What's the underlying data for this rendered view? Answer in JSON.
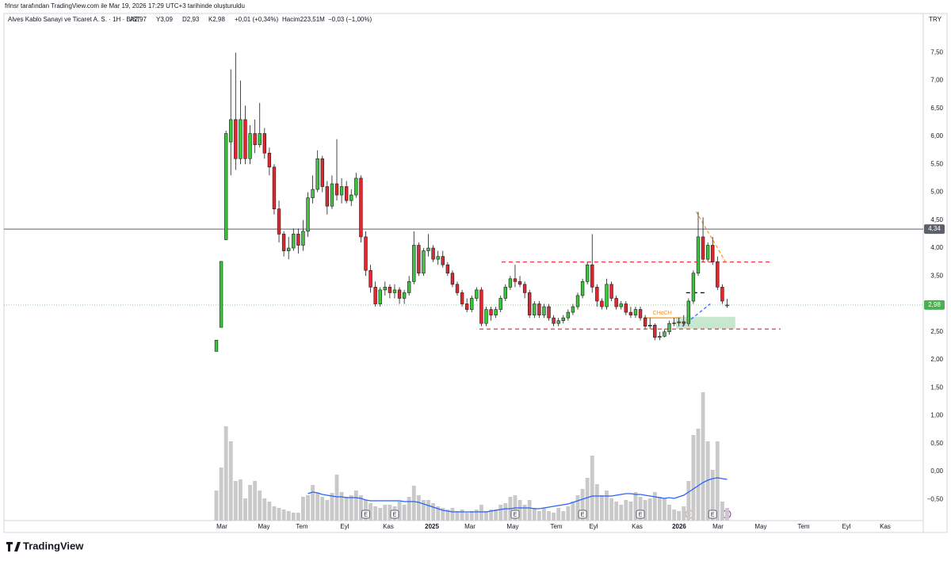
{
  "header": "frlnsr tarafından TradingView.com ile Mar 19, 2026 17:29 UTC+3 tarihinde oluşturuldu",
  "legend": {
    "symbol": "Alves Kablo Sanayi ve Ticaret A. S. · 1H · BIST",
    "open": "A2,97",
    "high": "Y3,09",
    "low": "D2,93",
    "close": "K2,98",
    "change": "+0,01 (+0,34%)",
    "volume": "Hacim223,51M",
    "volume_change": "−0,03 (−1,00%)"
  },
  "currency": "TRY",
  "brand": "TradingView",
  "chart_data": {
    "type": "candlestick",
    "xlim": [
      -44.08,
      146.71
    ],
    "xticks": [
      {
        "value": 1.15,
        "label": "Mar"
      },
      {
        "value": 9.87,
        "label": "May"
      },
      {
        "value": 17.76,
        "label": "Tem"
      },
      {
        "value": 26.64,
        "label": "Eyl"
      },
      {
        "value": 35.69,
        "label": "Kas"
      },
      {
        "value": 44.74,
        "label": "2025"
      },
      {
        "value": 52.63,
        "label": "Mar"
      },
      {
        "value": 61.51,
        "label": "May"
      },
      {
        "value": 70.56,
        "label": "Tem"
      },
      {
        "value": 78.29,
        "label": "Eyl"
      },
      {
        "value": 87.34,
        "label": "Kas"
      },
      {
        "value": 96.05,
        "label": "2026"
      },
      {
        "value": 104.11,
        "label": "Mar"
      },
      {
        "value": 112.99,
        "label": "May"
      },
      {
        "value": 121.88,
        "label": "Tem"
      },
      {
        "value": 130.76,
        "label": "Eyl"
      },
      {
        "value": 138.82,
        "label": "Kas"
      }
    ],
    "ylim": [
      -0.88,
      8.2
    ],
    "yticks": [
      {
        "value": -0.5,
        "label": "−0,50"
      },
      {
        "value": 0,
        "label": "0,00"
      },
      {
        "value": 0.5,
        "label": "0,50"
      },
      {
        "value": 1,
        "label": "1,00"
      },
      {
        "value": 1.5,
        "label": "1,50"
      },
      {
        "value": 2,
        "label": "2,00"
      },
      {
        "value": 2.5,
        "label": "2,50"
      },
      {
        "value": 3,
        "label": "3,00"
      },
      {
        "value": 3.5,
        "label": "3,50"
      },
      {
        "value": 4,
        "label": "4,00"
      },
      {
        "value": 4.5,
        "label": "4,50"
      },
      {
        "value": 5,
        "label": "5,00"
      },
      {
        "value": 5.5,
        "label": "5,50"
      },
      {
        "value": 6,
        "label": "6,00"
      },
      {
        "value": 6.5,
        "label": "6,50"
      },
      {
        "value": 7,
        "label": "7,00"
      },
      {
        "value": 7.5,
        "label": "7,50"
      }
    ],
    "up_color": "#3fc43f",
    "down_color": "#dc2a32",
    "volume_color": "#c9c9c9",
    "volume_ma_color": "#2962ff",
    "open": [
      2.15,
      2.58,
      4.15,
      5.9,
      6.3,
      5.6,
      6.3,
      5.6,
      6.05,
      5.85,
      6.05,
      5.7,
      5.45,
      4.7,
      4.25,
      3.95,
      4.0,
      4.25,
      4.05,
      4.3,
      4.9,
      5.05,
      5.6,
      5.1,
      4.75,
      5.15,
      4.95,
      5.1,
      4.85,
      4.95,
      5.25,
      4.2,
      3.6,
      3.3,
      3.0,
      3.25,
      3.3,
      3.2,
      3.25,
      3.1,
      3.2,
      3.4,
      4.05,
      3.55,
      3.95,
      4.0,
      3.8,
      3.85,
      3.7,
      3.55,
      3.35,
      3.2,
      3.0,
      2.9,
      3.1,
      3.25,
      2.65,
      2.9,
      2.8,
      2.9,
      3.1,
      3.3,
      3.45,
      3.4,
      3.35,
      3.2,
      2.8,
      3.0,
      2.8,
      2.95,
      2.75,
      2.65,
      2.7,
      2.75,
      2.85,
      2.95,
      3.15,
      3.4,
      3.7,
      3.3,
      3.05,
      2.95,
      3.35,
      3.1,
      2.95,
      3.0,
      2.85,
      2.8,
      2.9,
      2.75,
      2.6,
      2.62,
      2.4,
      2.42,
      2.5,
      2.65,
      2.66,
      2.68,
      2.65,
      3.05,
      3.55,
      4.2,
      3.8,
      4.05,
      3.75,
      3.3,
      2.97
    ],
    "high": [
      2.35,
      3.76,
      6.1,
      7.2,
      7.5,
      7.0,
      6.55,
      6.2,
      6.3,
      6.6,
      6.15,
      5.8,
      5.5,
      4.85,
      4.3,
      4.2,
      4.35,
      4.35,
      4.5,
      5.0,
      5.3,
      5.75,
      5.65,
      5.2,
      5.3,
      5.95,
      5.25,
      5.2,
      5.05,
      5.35,
      5.3,
      4.3,
      3.7,
      3.4,
      3.3,
      3.4,
      3.35,
      3.35,
      3.3,
      3.25,
      3.5,
      4.3,
      4.1,
      4.0,
      4.25,
      4.05,
      3.95,
      3.95,
      3.75,
      3.6,
      3.4,
      3.25,
      3.1,
      3.15,
      3.3,
      3.3,
      2.95,
      2.95,
      2.95,
      3.15,
      3.35,
      3.5,
      3.7,
      3.5,
      3.4,
      3.25,
      3.05,
      3.05,
      3.0,
      3.0,
      2.8,
      2.75,
      2.8,
      2.9,
      3.0,
      3.2,
      3.45,
      3.75,
      4.25,
      3.35,
      3.1,
      3.45,
      3.4,
      3.15,
      3.05,
      3.05,
      2.95,
      2.95,
      2.95,
      2.8,
      2.75,
      2.65,
      2.5,
      2.55,
      2.7,
      2.75,
      2.75,
      2.8,
      3.1,
      3.6,
      4.65,
      4.55,
      4.1,
      4.2,
      3.85,
      3.35,
      3.09
    ],
    "low": [
      2.15,
      2.58,
      4.15,
      5.3,
      5.4,
      5.5,
      5.5,
      5.5,
      5.7,
      5.8,
      5.6,
      5.3,
      4.6,
      4.1,
      3.85,
      3.8,
      3.95,
      3.9,
      3.95,
      4.2,
      4.8,
      5.0,
      5.0,
      4.6,
      4.7,
      4.85,
      4.8,
      4.8,
      4.75,
      4.9,
      4.1,
      3.5,
      3.2,
      2.95,
      2.95,
      3.15,
      3.1,
      3.1,
      3.0,
      3.0,
      3.15,
      3.35,
      3.5,
      3.5,
      3.85,
      3.75,
      3.7,
      3.65,
      3.5,
      3.3,
      3.15,
      2.95,
      2.85,
      2.85,
      3.05,
      2.6,
      2.6,
      2.7,
      2.75,
      2.85,
      3.05,
      3.25,
      3.3,
      3.3,
      3.1,
      2.75,
      2.75,
      2.75,
      2.75,
      2.7,
      2.6,
      2.6,
      2.65,
      2.7,
      2.8,
      2.9,
      3.1,
      3.35,
      3.2,
      2.95,
      2.9,
      2.9,
      3.05,
      2.9,
      2.9,
      2.8,
      2.75,
      2.75,
      2.7,
      2.55,
      2.55,
      2.35,
      2.35,
      2.4,
      2.45,
      2.6,
      2.6,
      2.6,
      2.6,
      3.0,
      3.5,
      3.75,
      3.75,
      3.7,
      3.25,
      3.0,
      2.93
    ],
    "close": [
      2.35,
      3.76,
      6.05,
      6.3,
      5.6,
      6.3,
      5.6,
      6.05,
      5.85,
      6.05,
      5.7,
      5.45,
      4.7,
      4.25,
      3.95,
      4.0,
      4.25,
      4.05,
      4.3,
      4.9,
      5.05,
      5.6,
      5.1,
      4.75,
      5.15,
      4.95,
      5.1,
      4.85,
      4.95,
      5.25,
      4.2,
      3.6,
      3.3,
      3.0,
      3.25,
      3.3,
      3.2,
      3.25,
      3.1,
      3.2,
      3.4,
      4.05,
      3.55,
      3.95,
      4.0,
      3.8,
      3.85,
      3.7,
      3.55,
      3.35,
      3.2,
      3.0,
      2.9,
      3.1,
      3.25,
      2.65,
      2.9,
      2.8,
      2.9,
      3.1,
      3.3,
      3.45,
      3.4,
      3.35,
      3.2,
      2.8,
      3.0,
      2.8,
      2.95,
      2.75,
      2.65,
      2.7,
      2.75,
      2.85,
      2.95,
      3.15,
      3.4,
      3.7,
      3.3,
      3.05,
      2.95,
      3.35,
      3.1,
      2.95,
      3.0,
      2.85,
      2.8,
      2.9,
      2.75,
      2.6,
      2.62,
      2.4,
      2.42,
      2.5,
      2.65,
      2.66,
      2.68,
      2.65,
      3.05,
      3.55,
      4.2,
      3.8,
      4.05,
      3.75,
      3.3,
      3.05,
      2.98
    ],
    "volume": [
      3.8,
      6.7,
      11.9,
      10.0,
      5.0,
      5.2,
      2.8,
      4.5,
      5.0,
      3.8,
      2.8,
      2.4,
      1.8,
      1.6,
      1.4,
      1.2,
      1.0,
      1.0,
      3.0,
      3.2,
      4.5,
      3.5,
      3.0,
      2.6,
      3.5,
      5.8,
      3.6,
      3.0,
      3.2,
      3.8,
      3.2,
      2.6,
      2.2,
      1.8,
      1.6,
      2.0,
      2.0,
      1.8,
      2.4,
      2.0,
      3.0,
      4.4,
      3.2,
      2.6,
      2.6,
      2.2,
      1.8,
      1.6,
      1.4,
      1.6,
      1.2,
      1.4,
      1.0,
      1.2,
      1.4,
      2.0,
      1.2,
      1.4,
      1.4,
      2.0,
      2.2,
      3.0,
      3.2,
      2.6,
      2.0,
      2.6,
      1.6,
      1.2,
      1.6,
      1.2,
      1.0,
      1.6,
      1.2,
      1.8,
      2.4,
      3.2,
      4.0,
      5.4,
      8.2,
      4.6,
      3.2,
      3.8,
      2.8,
      2.4,
      2.0,
      2.6,
      2.4,
      3.6,
      3.0,
      2.6,
      2.8,
      3.6,
      3.0,
      2.8,
      2.0,
      1.4,
      1.2,
      1.8,
      5.0,
      10.8,
      11.6,
      16.2,
      10.0,
      6.4,
      10.0,
      2.4,
      1.6
    ],
    "volume_ma": [
      null,
      null,
      null,
      null,
      null,
      null,
      null,
      null,
      null,
      null,
      null,
      null,
      null,
      null,
      null,
      null,
      null,
      null,
      null,
      3.4,
      3.6,
      3.5,
      3.3,
      3.2,
      3.1,
      3.0,
      3.0,
      2.9,
      2.9,
      2.9,
      2.8,
      2.6,
      2.5,
      2.5,
      2.5,
      2.5,
      2.5,
      2.5,
      2.5,
      2.4,
      2.4,
      2.4,
      2.3,
      2.1,
      1.9,
      1.7,
      1.5,
      1.3,
      1.2,
      1.1,
      1.1,
      1.1,
      1.1,
      1.1,
      1.1,
      1.1,
      1.1,
      1.2,
      1.3,
      1.4,
      1.5,
      1.5,
      1.6,
      1.6,
      1.6,
      1.6,
      1.5,
      1.5,
      1.6,
      1.7,
      1.8,
      1.9,
      2.0,
      2.1,
      2.3,
      2.5,
      2.7,
      2.9,
      3.1,
      3.1,
      3.1,
      3.1,
      3.1,
      3.2,
      3.3,
      3.4,
      3.4,
      3.3,
      3.3,
      3.2,
      3.1,
      3.0,
      2.9,
      2.8,
      2.9,
      2.8,
      3.0,
      3.2,
      3.6,
      4.0,
      4.4,
      4.8,
      5.1,
      5.3,
      5.4,
      5.3,
      5.2
    ],
    "current_line": {
      "value": 4.34,
      "label": "4,34",
      "color": "#5d606b"
    },
    "last_price": {
      "value": 2.98,
      "label": "2,98",
      "color": "#4caf50"
    },
    "levels": [
      {
        "value": 3.75,
        "x": [
          59.2,
          115.0
        ],
        "color": "#f23645"
      },
      {
        "value": 2.55,
        "x": [
          54.6,
          117.1
        ],
        "color": "#f23645"
      },
      {
        "value": 3.2,
        "x": [
          97.5,
          101.8
        ],
        "color": "#131722"
      }
    ],
    "choch": {
      "label": "CHoCH",
      "value": 2.75,
      "x": [
        88.7,
        96.4
      ],
      "color": "#f7931a"
    },
    "zone": {
      "y": [
        2.55,
        2.77
      ],
      "x": [
        95.4,
        107.7
      ],
      "color": "#8fd19e"
    },
    "trendlines": [
      {
        "x": [
          96.7,
          102.5
        ],
        "y": [
          2.6,
          3.0
        ],
        "color": "#2962ff"
      },
      {
        "x": [
          99.6,
          105.7
        ],
        "y": [
          4.65,
          3.75
        ],
        "color": "#f7931a"
      }
    ],
    "events": [
      {
        "x": 31,
        "label": "E"
      },
      {
        "x": 37,
        "label": "E"
      },
      {
        "x": 62,
        "label": "E"
      },
      {
        "x": 76,
        "label": "E"
      },
      {
        "x": 88,
        "label": "E"
      },
      {
        "x": 103,
        "label": "E"
      }
    ]
  }
}
